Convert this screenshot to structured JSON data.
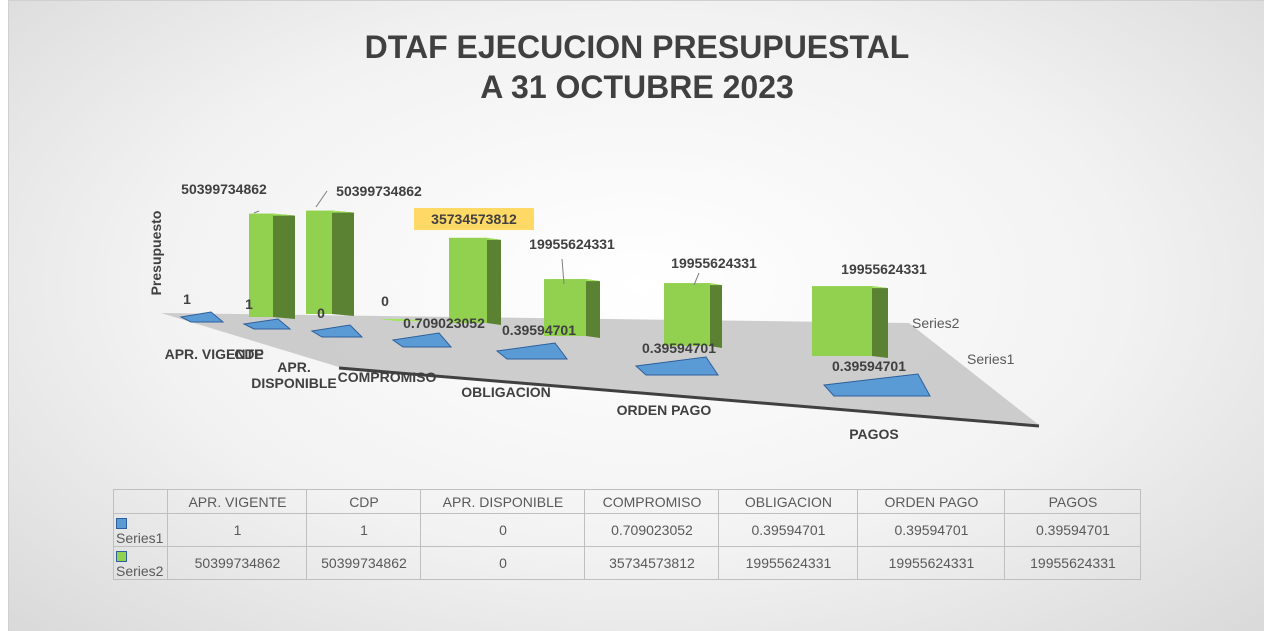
{
  "chart_data": {
    "type": "bar3d",
    "title": [
      "DTAF EJECUCION PRESUPUESTAL",
      "A 31 OCTUBRE 2023"
    ],
    "y_label": "Presupuesto",
    "categories": [
      "APR. VIGENTE",
      "CDP",
      "APR. DISPONIBLE",
      "COMPROMISO",
      "OBLIGACION",
      "ORDEN PAGO",
      "PAGOS"
    ],
    "series": [
      {
        "name": "Series1",
        "color": "#5b9bd5",
        "values": [
          1,
          1,
          0,
          0.709023052,
          0.39594701,
          0.39594701,
          0.39594701
        ]
      },
      {
        "name": "Series2",
        "color": "#92d050",
        "values": [
          50399734862,
          50399734862,
          0,
          35734573812,
          19955624331,
          19955624331,
          19955624331
        ]
      }
    ],
    "ylim": [
      0,
      60000000000
    ]
  }
}
